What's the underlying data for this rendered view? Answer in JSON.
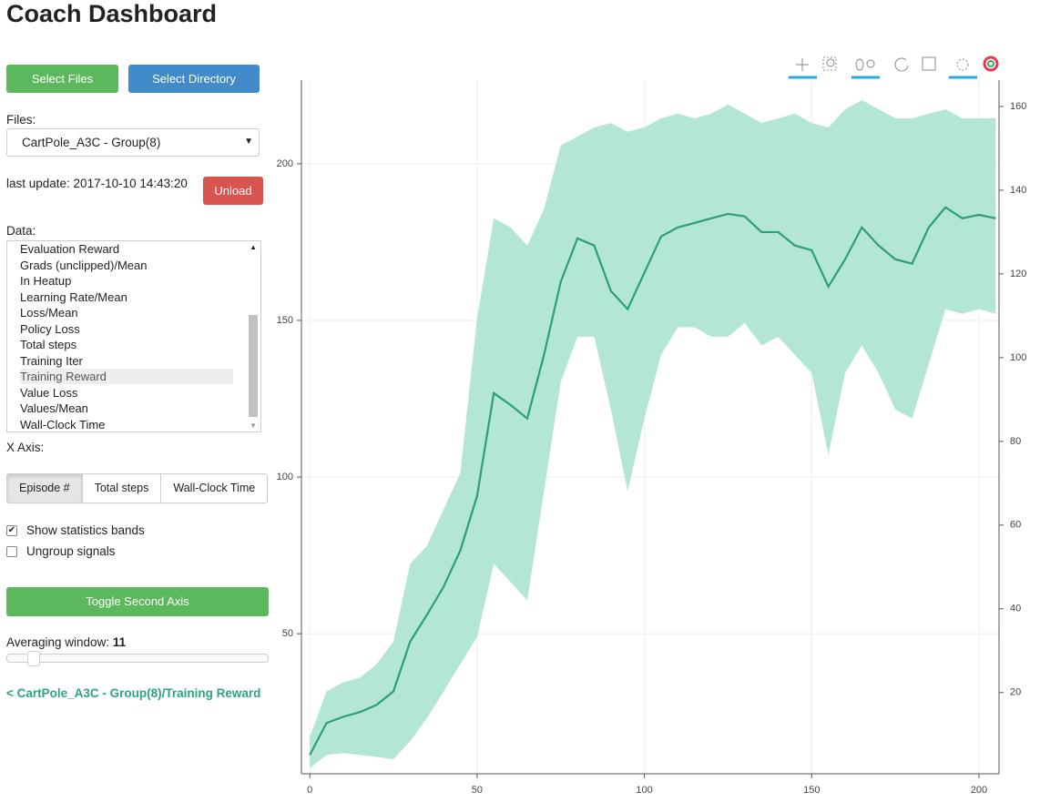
{
  "header": {
    "title": "Coach Dashboard"
  },
  "sidebar": {
    "buttons": {
      "select_files": "Select Files",
      "select_directory": "Select Directory",
      "unload": "Unload",
      "toggle_second_axis": "Toggle Second Axis"
    },
    "files_label": "Files:",
    "file_selected": "CartPole_A3C - Group(8)",
    "last_update": "last update: 2017-10-10 14:43:20",
    "data_label": "Data:",
    "data_items": [
      "Evaluation Reward",
      "Grads (unclipped)/Mean",
      "In Heatup",
      "Learning Rate/Mean",
      "Loss/Mean",
      "Policy Loss",
      "Total steps",
      "Training Iter",
      "Training Reward",
      "Value Loss",
      "Values/Mean",
      "Wall-Clock Time"
    ],
    "data_selected_index": 8,
    "x_axis_label": "X Axis:",
    "x_axis_options": [
      "Episode #",
      "Total steps",
      "Wall-Clock Time"
    ],
    "x_axis_active_index": 0,
    "checkboxes": [
      {
        "label": "Show statistics bands",
        "checked": true
      },
      {
        "label": "Ungroup signals",
        "checked": false
      }
    ],
    "averaging_window_label": "Averaging window:",
    "averaging_window": 11,
    "signal_link": "< CartPole_A3C - Group(8)/Training Reward"
  },
  "chart_data": {
    "type": "line",
    "x": [
      0,
      5,
      10,
      15,
      20,
      25,
      30,
      35,
      40,
      45,
      50,
      55,
      60,
      65,
      70,
      75,
      80,
      85,
      90,
      95,
      100,
      105,
      110,
      115,
      120,
      125,
      130,
      135,
      140,
      145,
      150,
      155,
      160,
      165,
      170,
      175,
      180,
      185,
      190,
      195,
      200,
      205
    ],
    "values": [
      11.3,
      21.5,
      23.5,
      25,
      27.3,
      31.6,
      47.5,
      56,
      65,
      76.6,
      94,
      126.8,
      123,
      118.7,
      139,
      162.3,
      176.2,
      173.9,
      159.4,
      153.6,
      165.2,
      176.8,
      179.7,
      181.1,
      182.6,
      184,
      183.2,
      178.2,
      178.2,
      173.9,
      172.4,
      160.8,
      169.5,
      179.7,
      173.9,
      169.5,
      168.1,
      179.7,
      186.1,
      182.6,
      183.7,
      182.6
    ],
    "color": "#2e9e78",
    "band": {
      "color": "#b3e6d7",
      "upper": [
        17,
        31.6,
        34.5,
        36,
        40.3,
        47.5,
        72.3,
        78,
        89.7,
        101.3,
        150.7,
        182.6,
        179.7,
        173.9,
        185.5,
        205.8,
        208.7,
        211.6,
        213,
        210.2,
        211.6,
        214.5,
        216,
        214.5,
        216,
        218.9,
        216,
        213,
        214.5,
        216,
        213,
        211.6,
        217.4,
        220.3,
        217.4,
        214.5,
        214.5,
        216,
        217.4,
        214.5,
        214.5,
        214.5
      ],
      "lower": [
        7,
        11.3,
        11.9,
        11.3,
        10.7,
        9.9,
        15.7,
        23,
        31.6,
        40.3,
        49,
        72.3,
        66.5,
        60.7,
        95.5,
        130.3,
        144.8,
        144.8,
        121.6,
        95.5,
        118.7,
        139,
        147.8,
        147.8,
        144.8,
        144.8,
        149.2,
        142,
        144.8,
        139,
        133.2,
        107.1,
        133.2,
        142,
        133.2,
        121.6,
        118.7,
        136.1,
        153.6,
        152.1,
        153.6,
        152.1
      ]
    },
    "xlim": [
      -2.5,
      206
    ],
    "ylim": [
      5.3,
      226.7
    ],
    "y2lim": [
      0.6,
      166.3
    ],
    "xticks": [
      0,
      50,
      100,
      150,
      200
    ],
    "yticks": [
      50,
      100,
      150,
      200
    ],
    "y2ticks": [
      20,
      40,
      60,
      80,
      100,
      120,
      140,
      160
    ],
    "grid": true
  }
}
